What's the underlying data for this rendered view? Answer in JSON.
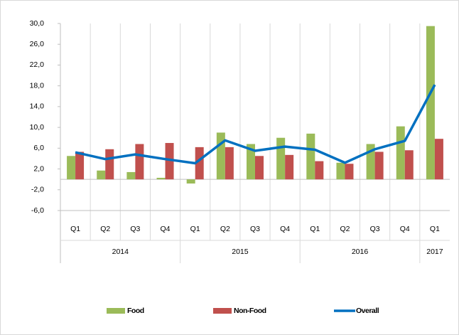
{
  "chart_data": {
    "type": "bar",
    "category_groups": [
      {
        "name": "2014",
        "categories": [
          "Q1",
          "Q2",
          "Q3",
          "Q4"
        ]
      },
      {
        "name": "2015",
        "categories": [
          "Q1",
          "Q2",
          "Q3",
          "Q4"
        ]
      },
      {
        "name": "2016",
        "categories": [
          "Q1",
          "Q2",
          "Q3",
          "Q4"
        ]
      },
      {
        "name": "2017",
        "categories": [
          "Q1"
        ]
      }
    ],
    "series": [
      {
        "name": "Food",
        "type": "bar",
        "color": "#9bbb59",
        "values": [
          4.5,
          1.7,
          1.4,
          0.3,
          -0.8,
          9.0,
          6.8,
          8.0,
          8.8,
          3.2,
          6.8,
          10.2,
          29.5
        ]
      },
      {
        "name": "Non-Food",
        "type": "bar",
        "color": "#c0504d",
        "values": [
          5.3,
          5.8,
          6.8,
          7.0,
          6.2,
          6.2,
          4.5,
          4.7,
          3.5,
          3.0,
          5.3,
          5.6,
          7.8
        ]
      },
      {
        "name": "Overall",
        "type": "line",
        "color": "#0070c0",
        "values": [
          5.2,
          3.9,
          4.8,
          3.9,
          3.1,
          7.5,
          5.5,
          6.3,
          5.7,
          3.2,
          5.8,
          7.4,
          18.2
        ]
      }
    ],
    "ylim": [
      -6,
      30
    ],
    "yticks": [
      {
        "value": 30,
        "label": "30,0"
      },
      {
        "value": 26,
        "label": "26,0"
      },
      {
        "value": 22,
        "label": "22,0"
      },
      {
        "value": 18,
        "label": "18,0"
      },
      {
        "value": 14,
        "label": "14,0"
      },
      {
        "value": 10,
        "label": "10,0"
      },
      {
        "value": 6,
        "label": "6,0"
      },
      {
        "value": 2,
        "label": "2,0"
      },
      {
        "value": -2,
        "label": "-2,0"
      },
      {
        "value": -6,
        "label": "-6,0"
      }
    ],
    "legend": "bottom"
  }
}
